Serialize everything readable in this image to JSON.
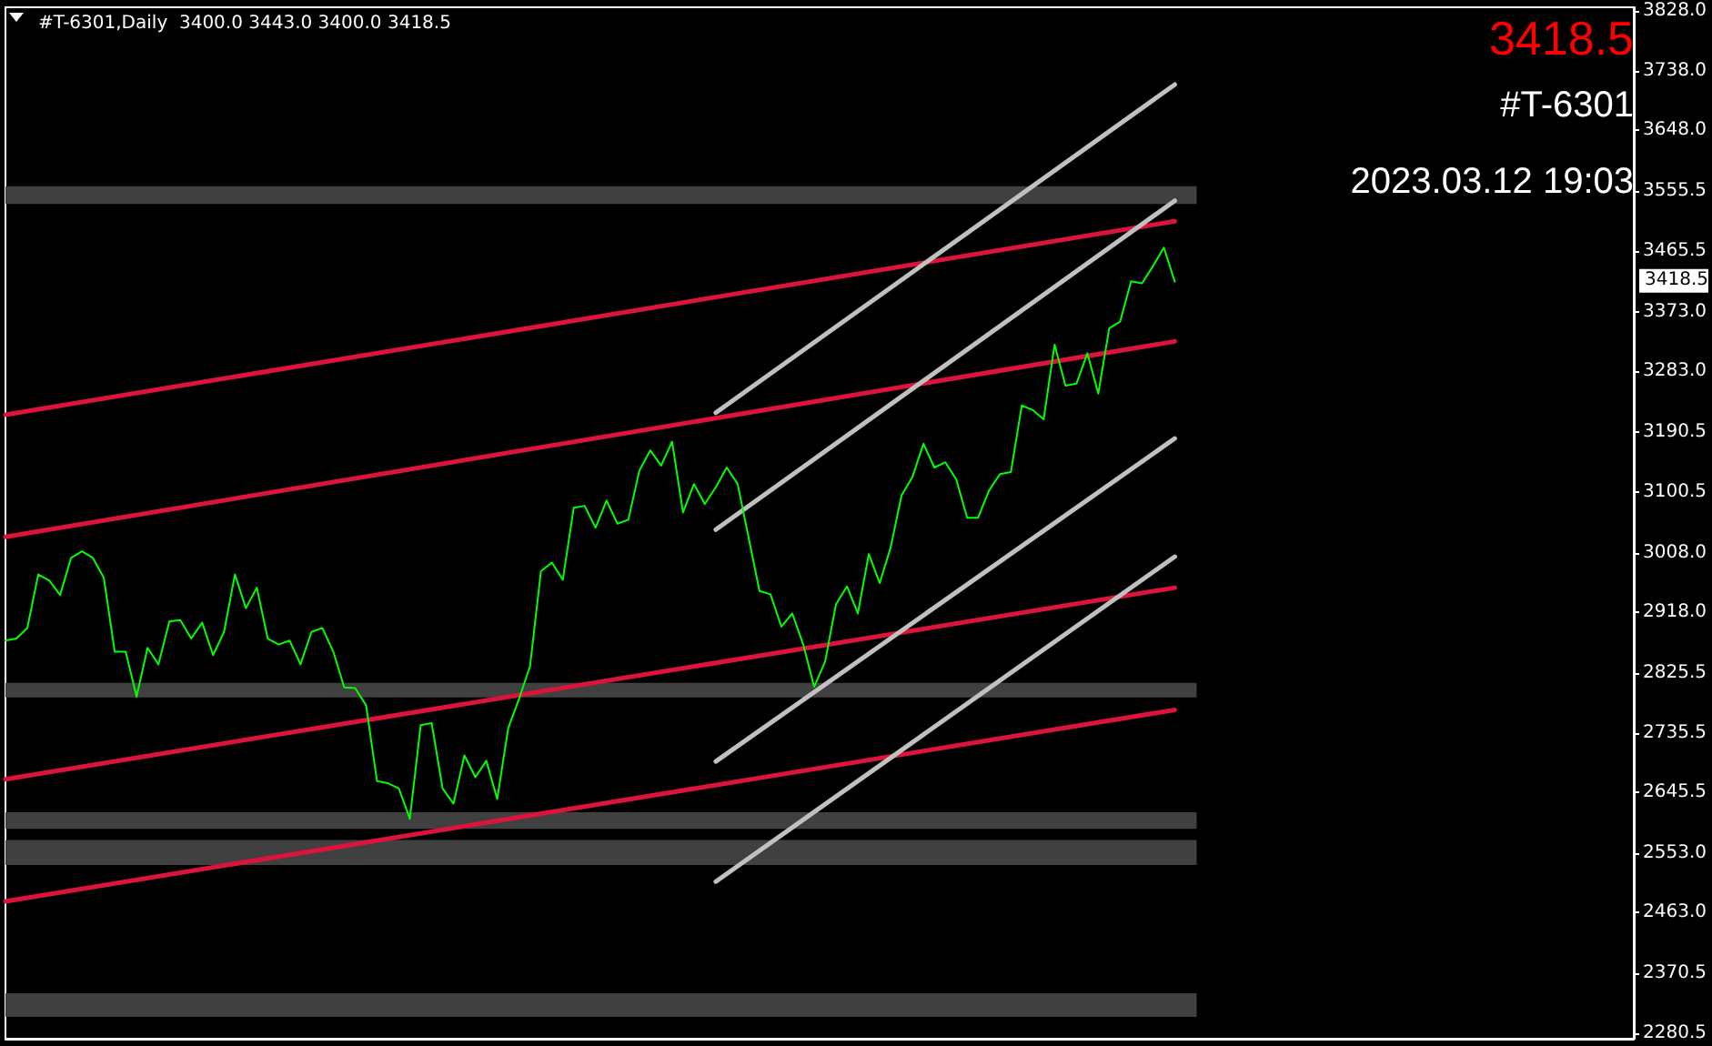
{
  "chart_data": {
    "type": "line",
    "title": "#T-6301,Daily  3400.0 3443.0 3400.0 3418.5",
    "categories": [
      null,
      null,
      null,
      null,
      null,
      null,
      null,
      null,
      null,
      null,
      null,
      null,
      null,
      null,
      null,
      null,
      null,
      null,
      null,
      null,
      null,
      null,
      null,
      null,
      null,
      null,
      null,
      null,
      null,
      null,
      null,
      null,
      null,
      null,
      null,
      null,
      null,
      null,
      null,
      null,
      null,
      null,
      null,
      null,
      null,
      null,
      null,
      null,
      null,
      null,
      null,
      null,
      null,
      null,
      null,
      null,
      null,
      null,
      null,
      null,
      null,
      null,
      null,
      null,
      null,
      null,
      null,
      null,
      null,
      null,
      null,
      null,
      null,
      null,
      null,
      null,
      null,
      null,
      null,
      null,
      null,
      null,
      null,
      null,
      null,
      null,
      null,
      null,
      null,
      null,
      null,
      null,
      null,
      null,
      null,
      null,
      null,
      null,
      null,
      null,
      null,
      null,
      null,
      null,
      null,
      null,
      null,
      null
    ],
    "series": [
      {
        "color": "#00ff00",
        "values": [
          2875,
          2878,
          2894,
          2975,
          2966,
          2944,
          3000,
          3010,
          3000,
          2970,
          2858,
          2858,
          2790,
          2864,
          2839,
          2904,
          2906,
          2878,
          2902,
          2853,
          2888,
          2975,
          2924,
          2955,
          2878,
          2869,
          2875,
          2839,
          2888,
          2894,
          2858,
          2804,
          2803,
          2777,
          2662,
          2659,
          2651,
          2605,
          2747,
          2750,
          2651,
          2628,
          2701,
          2668,
          2693,
          2635,
          2742,
          2787,
          2836,
          2980,
          2993,
          2967,
          3076,
          3079,
          3046,
          3087,
          3052,
          3058,
          3132,
          3163,
          3140,
          3176,
          3069,
          3112,
          3082,
          3107,
          3137,
          3112,
          3031,
          2950,
          2945,
          2896,
          2916,
          2869,
          2805,
          2843,
          2930,
          2957,
          2916,
          3006,
          2962,
          3016,
          3095,
          3123,
          3173,
          3137,
          3145,
          3119,
          3061,
          3061,
          3102,
          3127,
          3130,
          3231,
          3224,
          3210,
          3323,
          3261,
          3264,
          3310,
          3249,
          3348,
          3358,
          3419,
          3416,
          3442,
          3470,
          3418.5
        ]
      },
      {
        "color": "#dc143c",
        "values": [
          3217,
          null,
          null,
          null,
          null,
          null,
          null,
          null,
          null,
          null,
          null,
          null,
          null,
          null,
          null,
          null,
          null,
          null,
          null,
          null,
          null,
          null,
          null,
          null,
          null,
          null,
          null,
          null,
          null,
          null,
          null,
          null,
          null,
          null,
          null,
          null,
          null,
          null,
          null,
          null,
          null,
          null,
          null,
          null,
          null,
          null,
          null,
          null,
          null,
          null,
          null,
          null,
          null,
          null,
          null,
          null,
          null,
          null,
          null,
          null,
          null,
          null,
          null,
          null,
          null,
          null,
          null,
          null,
          null,
          null,
          null,
          null,
          null,
          null,
          null,
          null,
          null,
          null,
          null,
          null,
          null,
          null,
          null,
          null,
          null,
          null,
          null,
          null,
          null,
          null,
          null,
          null,
          null,
          null,
          null,
          null,
          null,
          null,
          null,
          null,
          null,
          null,
          null,
          null,
          null,
          null,
          null,
          3510
        ]
      },
      {
        "color": "#dc143c",
        "values": [
          3032,
          null,
          null,
          null,
          null,
          null,
          null,
          null,
          null,
          null,
          null,
          null,
          null,
          null,
          null,
          null,
          null,
          null,
          null,
          null,
          null,
          null,
          null,
          null,
          null,
          null,
          null,
          null,
          null,
          null,
          null,
          null,
          null,
          null,
          null,
          null,
          null,
          null,
          null,
          null,
          null,
          null,
          null,
          null,
          null,
          null,
          null,
          null,
          null,
          null,
          null,
          null,
          null,
          null,
          null,
          null,
          null,
          null,
          null,
          null,
          null,
          null,
          null,
          null,
          null,
          null,
          null,
          null,
          null,
          null,
          null,
          null,
          null,
          null,
          null,
          null,
          null,
          null,
          null,
          null,
          null,
          null,
          null,
          null,
          null,
          null,
          null,
          null,
          null,
          null,
          null,
          null,
          null,
          null,
          null,
          null,
          null,
          null,
          null,
          null,
          null,
          null,
          null,
          null,
          null,
          null,
          null,
          3328
        ]
      },
      {
        "color": "#dc143c",
        "values": [
          2665,
          null,
          null,
          null,
          null,
          null,
          null,
          null,
          null,
          null,
          null,
          null,
          null,
          null,
          null,
          null,
          null,
          null,
          null,
          null,
          null,
          null,
          null,
          null,
          null,
          null,
          null,
          null,
          null,
          null,
          null,
          null,
          null,
          null,
          null,
          null,
          null,
          null,
          null,
          null,
          null,
          null,
          null,
          null,
          null,
          null,
          null,
          null,
          null,
          null,
          null,
          null,
          null,
          null,
          null,
          null,
          null,
          null,
          null,
          null,
          null,
          null,
          null,
          null,
          null,
          null,
          null,
          null,
          null,
          null,
          null,
          null,
          null,
          null,
          null,
          null,
          null,
          null,
          null,
          null,
          null,
          null,
          null,
          null,
          null,
          null,
          null,
          null,
          null,
          null,
          null,
          null,
          null,
          null,
          null,
          null,
          null,
          null,
          null,
          null,
          null,
          null,
          null,
          null,
          null,
          null,
          null,
          2955
        ]
      },
      {
        "color": "#dc143c",
        "values": [
          2480,
          null,
          null,
          null,
          null,
          null,
          null,
          null,
          null,
          null,
          null,
          null,
          null,
          null,
          null,
          null,
          null,
          null,
          null,
          null,
          null,
          null,
          null,
          null,
          null,
          null,
          null,
          null,
          null,
          null,
          null,
          null,
          null,
          null,
          null,
          null,
          null,
          null,
          null,
          null,
          null,
          null,
          null,
          null,
          null,
          null,
          null,
          null,
          null,
          null,
          null,
          null,
          null,
          null,
          null,
          null,
          null,
          null,
          null,
          null,
          null,
          null,
          null,
          null,
          null,
          null,
          null,
          null,
          null,
          null,
          null,
          null,
          null,
          null,
          null,
          null,
          null,
          null,
          null,
          null,
          null,
          null,
          null,
          null,
          null,
          null,
          null,
          null,
          null,
          null,
          null,
          null,
          null,
          null,
          null,
          null,
          null,
          null,
          null,
          null,
          null,
          null,
          null,
          null,
          null,
          null,
          null,
          2770
        ]
      },
      {
        "color": "#c0c0c0",
        "values": [
          null,
          null,
          null,
          null,
          null,
          null,
          null,
          null,
          null,
          null,
          null,
          null,
          null,
          null,
          null,
          null,
          null,
          null,
          null,
          null,
          null,
          null,
          null,
          null,
          null,
          null,
          null,
          null,
          null,
          null,
          null,
          null,
          null,
          null,
          null,
          null,
          null,
          null,
          null,
          null,
          null,
          null,
          null,
          null,
          null,
          null,
          null,
          null,
          null,
          null,
          null,
          null,
          null,
          null,
          null,
          null,
          null,
          null,
          null,
          null,
          null,
          null,
          null,
          null,
          null,
          3220,
          null,
          null,
          null,
          null,
          null,
          null,
          null,
          null,
          null,
          null,
          null,
          null,
          null,
          null,
          null,
          null,
          null,
          null,
          null,
          null,
          null,
          null,
          null,
          null,
          null,
          null,
          null,
          null,
          null,
          null,
          null,
          null,
          null,
          null,
          null,
          null,
          null,
          null,
          null,
          null,
          null,
          3717
        ]
      },
      {
        "color": "#c0c0c0",
        "values": [
          null,
          null,
          null,
          null,
          null,
          null,
          null,
          null,
          null,
          null,
          null,
          null,
          null,
          null,
          null,
          null,
          null,
          null,
          null,
          null,
          null,
          null,
          null,
          null,
          null,
          null,
          null,
          null,
          null,
          null,
          null,
          null,
          null,
          null,
          null,
          null,
          null,
          null,
          null,
          null,
          null,
          null,
          null,
          null,
          null,
          null,
          null,
          null,
          null,
          null,
          null,
          null,
          null,
          null,
          null,
          null,
          null,
          null,
          null,
          null,
          null,
          null,
          null,
          null,
          null,
          3043,
          null,
          null,
          null,
          null,
          null,
          null,
          null,
          null,
          null,
          null,
          null,
          null,
          null,
          null,
          null,
          null,
          null,
          null,
          null,
          null,
          null,
          null,
          null,
          null,
          null,
          null,
          null,
          null,
          null,
          null,
          null,
          null,
          null,
          null,
          null,
          null,
          null,
          null,
          null,
          null,
          null,
          3541
        ]
      },
      {
        "color": "#c0c0c0",
        "values": [
          null,
          null,
          null,
          null,
          null,
          null,
          null,
          null,
          null,
          null,
          null,
          null,
          null,
          null,
          null,
          null,
          null,
          null,
          null,
          null,
          null,
          null,
          null,
          null,
          null,
          null,
          null,
          null,
          null,
          null,
          null,
          null,
          null,
          null,
          null,
          null,
          null,
          null,
          null,
          null,
          null,
          null,
          null,
          null,
          null,
          null,
          null,
          null,
          null,
          null,
          null,
          null,
          null,
          null,
          null,
          null,
          null,
          null,
          null,
          null,
          null,
          null,
          null,
          null,
          null,
          2692,
          null,
          null,
          null,
          null,
          null,
          null,
          null,
          null,
          null,
          null,
          null,
          null,
          null,
          null,
          null,
          null,
          null,
          null,
          null,
          null,
          null,
          null,
          null,
          null,
          null,
          null,
          null,
          null,
          null,
          null,
          null,
          null,
          null,
          null,
          null,
          null,
          null,
          null,
          null,
          null,
          null,
          3181
        ]
      },
      {
        "color": "#c0c0c0",
        "values": [
          null,
          null,
          null,
          null,
          null,
          null,
          null,
          null,
          null,
          null,
          null,
          null,
          null,
          null,
          null,
          null,
          null,
          null,
          null,
          null,
          null,
          null,
          null,
          null,
          null,
          null,
          null,
          null,
          null,
          null,
          null,
          null,
          null,
          null,
          null,
          null,
          null,
          null,
          null,
          null,
          null,
          null,
          null,
          null,
          null,
          null,
          null,
          null,
          null,
          null,
          null,
          null,
          null,
          null,
          null,
          null,
          null,
          null,
          null,
          null,
          null,
          null,
          null,
          null,
          null,
          2510,
          null,
          null,
          null,
          null,
          null,
          null,
          null,
          null,
          null,
          null,
          null,
          null,
          null,
          null,
          null,
          null,
          null,
          null,
          null,
          null,
          null,
          null,
          null,
          null,
          null,
          null,
          null,
          null,
          null,
          null,
          null,
          null,
          null,
          null,
          null,
          null,
          null,
          null,
          null,
          null,
          null,
          3002
        ]
      }
    ],
    "ylim": [
      2272,
      3834
    ],
    "yticks": [
      {
        "value": 3828,
        "label": "3828.0"
      },
      {
        "value": 3738,
        "label": "3738.0"
      },
      {
        "value": 3648,
        "label": "3648.0"
      },
      {
        "value": 3555.5,
        "label": "3555.5"
      },
      {
        "value": 3465.5,
        "label": "3465.5"
      },
      {
        "value": 3373,
        "label": "3373.0"
      },
      {
        "value": 3283,
        "label": "3283.0"
      },
      {
        "value": 3190.5,
        "label": "3190.5"
      },
      {
        "value": 3100.5,
        "label": "3100.5"
      },
      {
        "value": 3008,
        "label": "3008.0"
      },
      {
        "value": 2918,
        "label": "2918.0"
      },
      {
        "value": 2825.5,
        "label": "2825.5"
      },
      {
        "value": 2735.5,
        "label": "2735.5"
      },
      {
        "value": 2645.5,
        "label": "2645.5"
      },
      {
        "value": 2553,
        "label": "2553.0"
      },
      {
        "value": 2463,
        "label": "2463.0"
      },
      {
        "value": 2370.5,
        "label": "2370.5"
      },
      {
        "value": 2280.5,
        "label": "2280.5"
      }
    ],
    "bands": [
      {
        "axis": "y",
        "from": 3536,
        "to": 3563,
        "color": "#404040"
      },
      {
        "axis": "y",
        "from": 2789,
        "to": 2811,
        "color": "#404040"
      },
      {
        "axis": "y",
        "from": 2590,
        "to": 2615,
        "color": "#404040"
      },
      {
        "axis": "y",
        "from": 2535,
        "to": 2573,
        "color": "#404040"
      },
      {
        "axis": "y",
        "from": 2305,
        "to": 2341,
        "color": "#404040"
      }
    ],
    "annotations": [
      "3418.5",
      "#T-6301",
      "2023.03.12 19:03",
      "3418.5"
    ],
    "tick_labels": "y",
    "grid": false,
    "marker": "none",
    "line_style": "solid"
  }
}
